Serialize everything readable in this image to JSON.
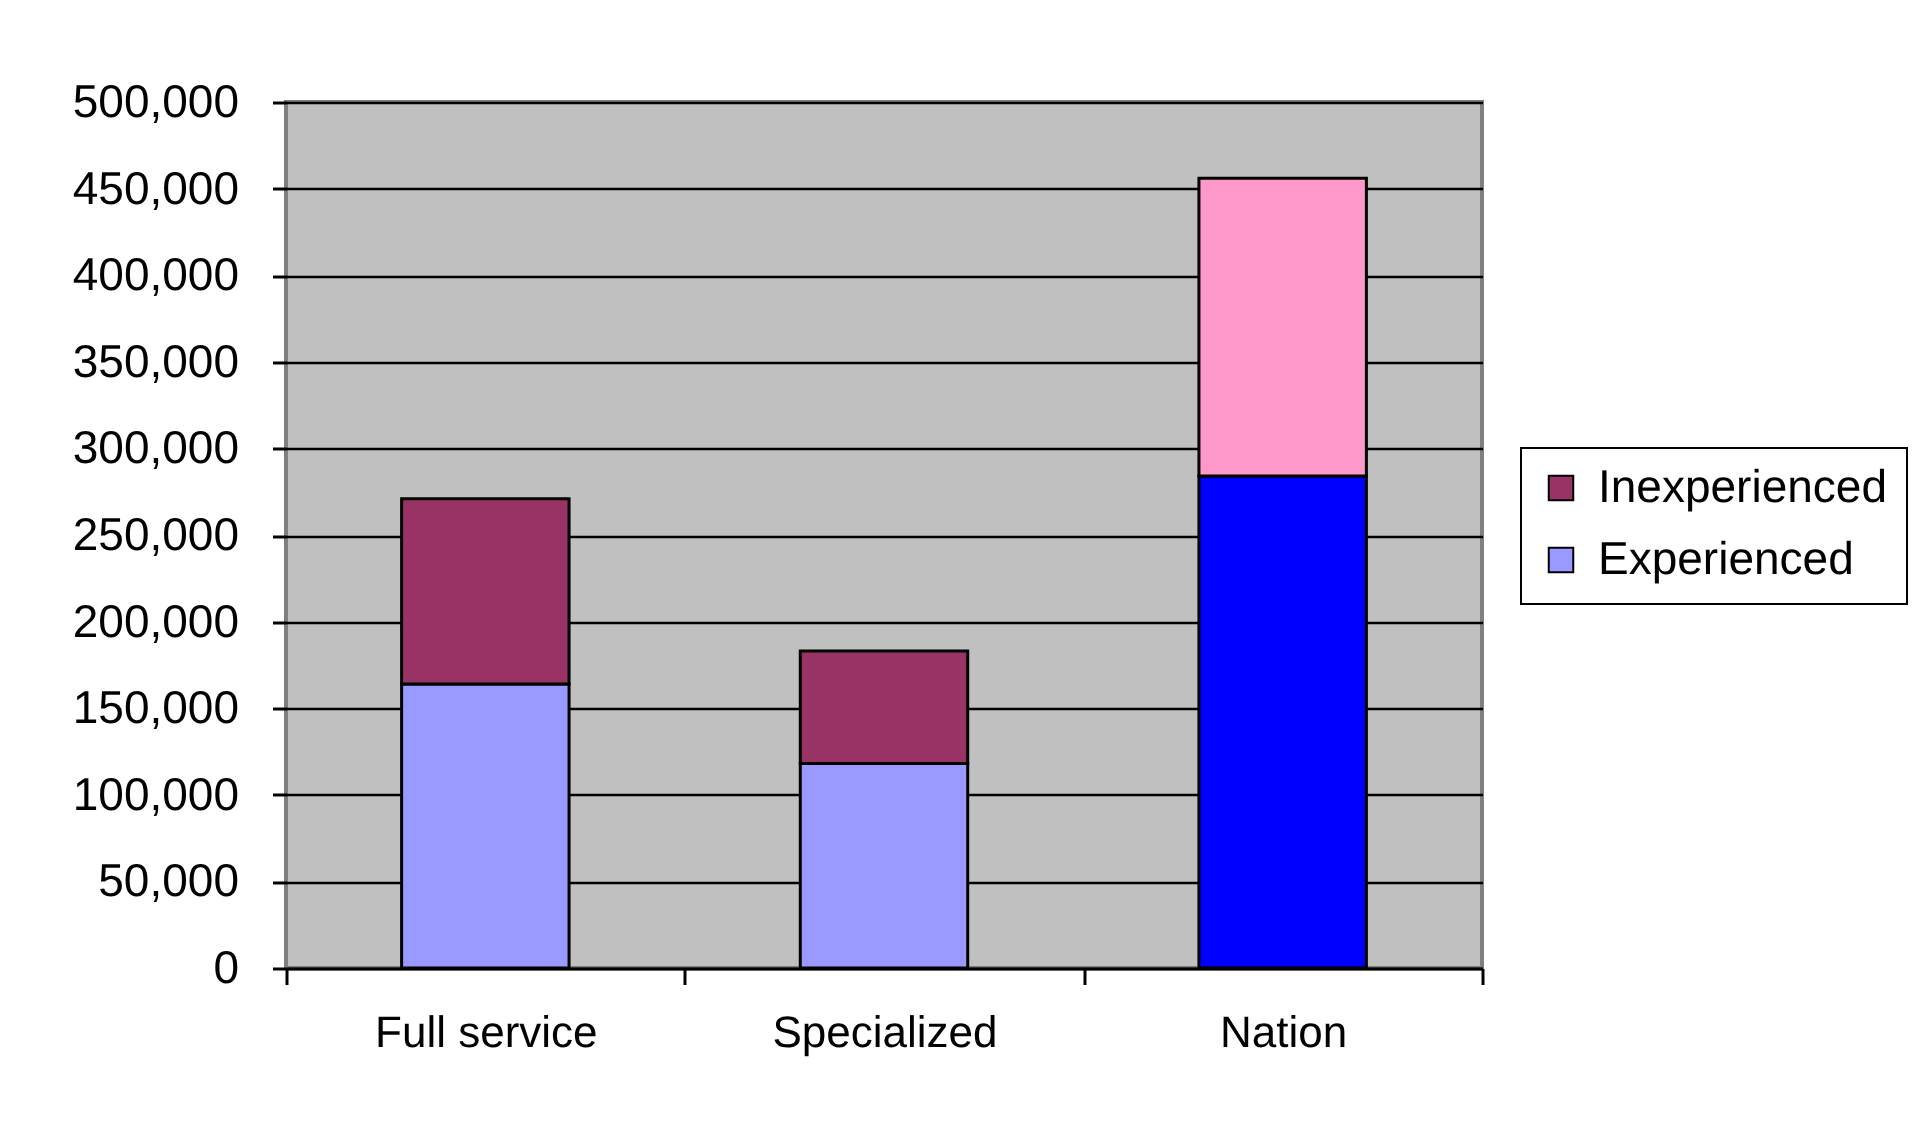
{
  "chart_data": {
    "type": "bar",
    "stacked": true,
    "categories": [
      "Full service",
      "Specialized",
      "Nation"
    ],
    "series": [
      {
        "name": "Experienced",
        "color": "#9999ff",
        "colors": [
          "#9999ff",
          "#9999ff",
          "#0000ff"
        ],
        "values": [
          164000,
          118000,
          284000
        ]
      },
      {
        "name": "Inexperienced",
        "color": "#993366",
        "colors": [
          "#993366",
          "#993366",
          "#ff99cc"
        ],
        "values": [
          107000,
          65000,
          172000
        ]
      }
    ],
    "ylim": [
      0,
      500000
    ],
    "yticks": [
      {
        "value": 0,
        "label": "0"
      },
      {
        "value": 50000,
        "label": "50,000"
      },
      {
        "value": 100000,
        "label": "100,000"
      },
      {
        "value": 150000,
        "label": "150,000"
      },
      {
        "value": 200000,
        "label": "200,000"
      },
      {
        "value": 250000,
        "label": "250,000"
      },
      {
        "value": 300000,
        "label": "300,000"
      },
      {
        "value": 350000,
        "label": "350,000"
      },
      {
        "value": 400000,
        "label": "400,000"
      },
      {
        "value": 450000,
        "label": "450,000"
      },
      {
        "value": 500000,
        "label": "500,000"
      }
    ],
    "grid": "y",
    "legend": "right"
  }
}
